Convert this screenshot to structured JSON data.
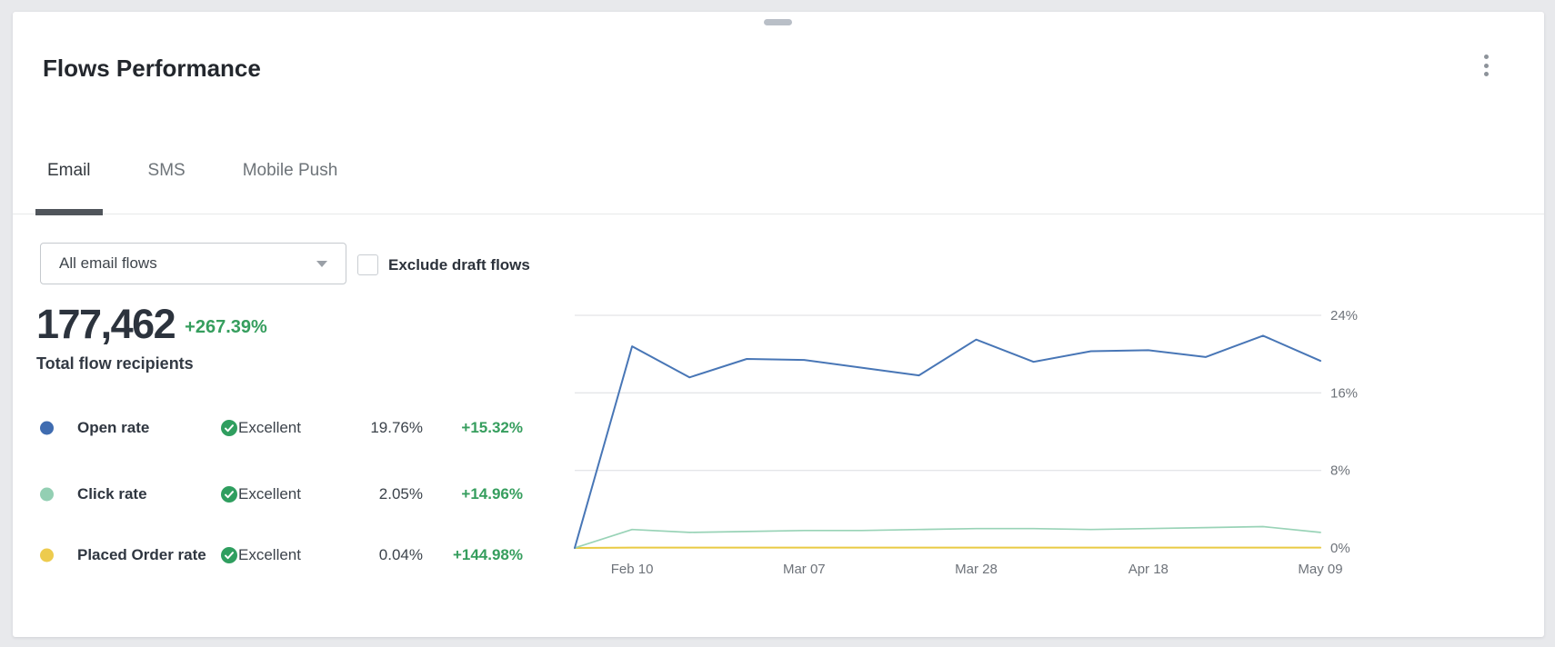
{
  "header": {
    "title": "Flows Performance",
    "menu_icon": "kebab-menu-icon",
    "drag_handle_icon": "drag-handle"
  },
  "tabs": [
    {
      "label": "Email",
      "active": true
    },
    {
      "label": "SMS",
      "active": false
    },
    {
      "label": "Mobile Push",
      "active": false
    }
  ],
  "controls": {
    "flow_filter": {
      "value": "All email flows",
      "caret_icon": "chevron-down-icon"
    },
    "exclude_draft": {
      "label": "Exclude draft flows",
      "checked": false
    }
  },
  "summary": {
    "total_recipients": "177,462",
    "total_recipients_delta": "+267.39%",
    "total_recipients_label": "Total flow recipients"
  },
  "metrics": [
    {
      "name": "Open rate",
      "dot_color": "#3f6cb0",
      "status": "Excellent",
      "status_icon": "check-circle-icon",
      "value": "19.76%",
      "delta": "+15.32%"
    },
    {
      "name": "Click rate",
      "dot_color": "#93cfb3",
      "status": "Excellent",
      "status_icon": "check-circle-icon",
      "value": "2.05%",
      "delta": "+14.96%"
    },
    {
      "name": "Placed Order rate",
      "dot_color": "#edcb4e",
      "status": "Excellent",
      "status_icon": "check-circle-icon",
      "value": "0.04%",
      "delta": "+144.98%"
    }
  ],
  "colors": {
    "status_green": "#2f9e5f",
    "delta_green": "#369e5e",
    "gridline": "#dcdee1",
    "axis_text": "#6e737a"
  },
  "chart_data": {
    "type": "line",
    "title": "",
    "xlabel": "",
    "ylabel": "",
    "ylim": [
      0,
      24
    ],
    "grid": true,
    "legend": "none",
    "y_ticks": [
      "24%",
      "16%",
      "8%",
      "0%"
    ],
    "y_tick_values": [
      24,
      16,
      8,
      0
    ],
    "x_labels": [
      "Feb 10",
      "Mar 07",
      "Mar 28",
      "Apr 18",
      "May 09"
    ],
    "x_label_indices": [
      1,
      4,
      7,
      10,
      13
    ],
    "series": [
      {
        "name": "Open rate",
        "color": "#4876b6",
        "width": 2,
        "values": [
          0,
          20.8,
          17.6,
          19.5,
          19.4,
          18.6,
          17.8,
          21.5,
          19.2,
          20.3,
          20.4,
          19.7,
          21.9,
          19.3
        ]
      },
      {
        "name": "Click rate",
        "color": "#99d3b7",
        "width": 1.7,
        "values": [
          0,
          1.9,
          1.6,
          1.7,
          1.8,
          1.8,
          1.9,
          2.0,
          2.0,
          1.9,
          2.0,
          2.1,
          2.2,
          1.6
        ]
      },
      {
        "name": "Placed Order rate",
        "color": "#e9ca43",
        "width": 2,
        "values": [
          0,
          0.04,
          0.04,
          0.04,
          0.04,
          0.04,
          0.04,
          0.04,
          0.04,
          0.04,
          0.04,
          0.04,
          0.04,
          0.04
        ]
      }
    ]
  }
}
